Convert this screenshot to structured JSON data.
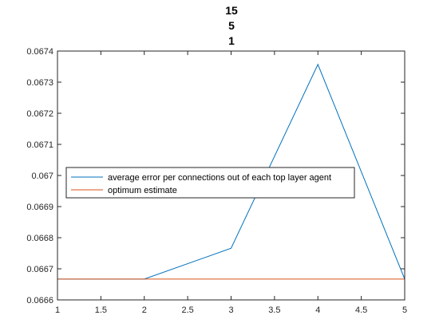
{
  "chart_data": {
    "type": "line",
    "title_lines": [
      "15",
      "5",
      "1"
    ],
    "xlabel": "",
    "ylabel": "",
    "x": [
      1,
      2,
      3,
      4,
      5
    ],
    "xlim": [
      1,
      5
    ],
    "ylim": [
      0.0666,
      0.0674
    ],
    "x_ticks": [
      1,
      1.5,
      2,
      2.5,
      3,
      3.5,
      4,
      4.5,
      5
    ],
    "y_ticks": [
      0.0666,
      0.0667,
      0.0668,
      0.0669,
      0.067,
      0.0671,
      0.0672,
      0.0673,
      0.0674
    ],
    "x_tick_labels": [
      "1",
      "1.5",
      "2",
      "2.5",
      "3",
      "3.5",
      "4",
      "4.5",
      "5"
    ],
    "y_tick_labels": [
      "0.0666",
      "0.0667",
      "0.0668",
      "0.0669",
      "0.067",
      "0.0671",
      "0.0672",
      "0.0673",
      "0.0674"
    ],
    "grid": false,
    "legend_position": "left-middle",
    "series": [
      {
        "name": "average error per connections out of each top layer agent",
        "color": "#0072BD",
        "values": [
          0.066667,
          0.066667,
          0.066766,
          0.067357,
          0.066667
        ]
      },
      {
        "name": "optimum estimate",
        "color": "#D95319",
        "values": [
          0.066667,
          0.066667,
          0.066667,
          0.066667,
          0.066667
        ]
      }
    ]
  }
}
